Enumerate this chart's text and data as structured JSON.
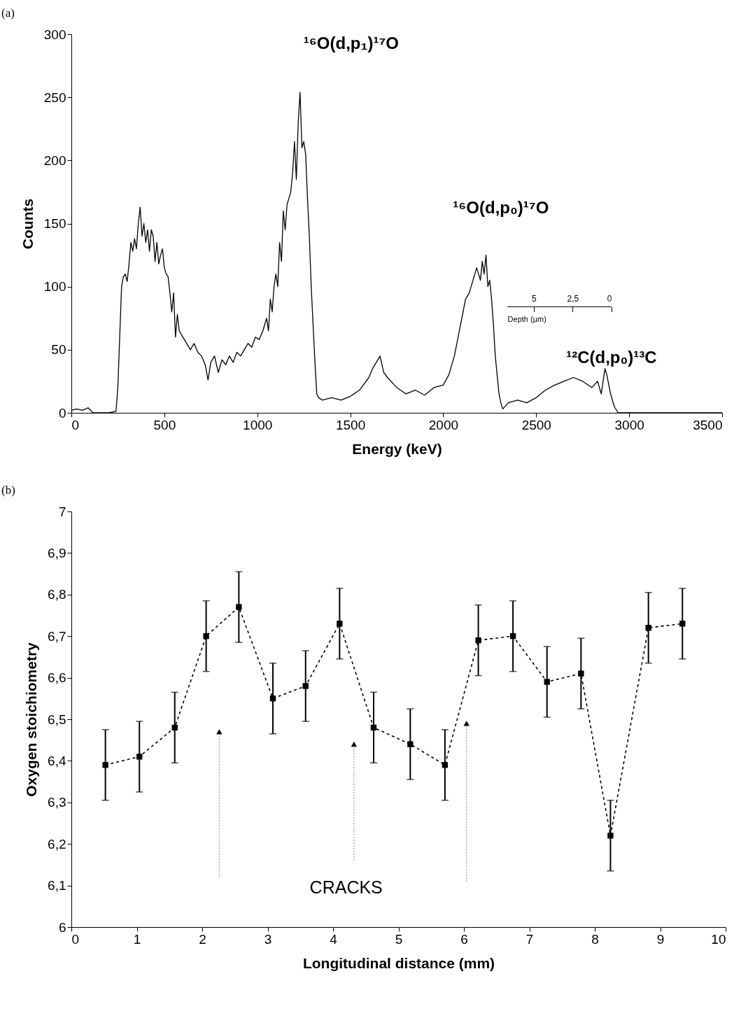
{
  "chart_data": [
    {
      "type": "line",
      "title": "(a)",
      "xlabel": "Energy (keV)",
      "ylabel": "Counts",
      "xlim": [
        0,
        3500
      ],
      "xticks": [
        0,
        500,
        1000,
        1500,
        2000,
        2500,
        3000,
        3500
      ],
      "ylim": [
        0,
        300
      ],
      "yticks": [
        0,
        50,
        100,
        150,
        200,
        250,
        300
      ],
      "x2lim": [
        6.7,
        0
      ],
      "x2ticks": [
        5,
        {
          "value": 2.5,
          "label": "2,5"
        },
        0
      ],
      "x2label": "Depth (µm)",
      "annotations": [
        "¹⁶O(d,p₁)¹⁷O",
        "¹⁶O(d,p₀)¹⁷O",
        "¹²C(d,p₀)¹³C"
      ],
      "series": [
        {
          "color": "#000000",
          "line_style": "solid",
          "x": [
            0,
            30,
            60,
            90,
            110,
            115,
            200,
            240,
            250,
            260,
            270,
            280,
            290,
            300,
            310,
            320,
            330,
            340,
            350,
            360,
            370,
            380,
            390,
            400,
            410,
            420,
            430,
            440,
            450,
            460,
            470,
            480,
            490,
            500,
            510,
            520,
            530,
            540,
            550,
            560,
            570,
            580,
            600,
            620,
            640,
            660,
            680,
            700,
            720,
            735,
            750,
            770,
            790,
            810,
            830,
            850,
            870,
            890,
            910,
            930,
            950,
            970,
            990,
            1010,
            1030,
            1050,
            1060,
            1070,
            1080,
            1090,
            1100,
            1110,
            1120,
            1130,
            1140,
            1150,
            1160,
            1170,
            1180,
            1190,
            1200,
            1210,
            1220,
            1230,
            1240,
            1250,
            1260,
            1270,
            1280,
            1290,
            1300,
            1310,
            1320,
            1330,
            1350,
            1400,
            1450,
            1500,
            1550,
            1600,
            1620,
            1640,
            1660,
            1680,
            1700,
            1750,
            1800,
            1850,
            1900,
            1950,
            2000,
            2030,
            2060,
            2080,
            2100,
            2120,
            2140,
            2160,
            2180,
            2200,
            2210,
            2220,
            2230,
            2240,
            2250,
            2260,
            2270,
            2280,
            2290,
            2300,
            2310,
            2320,
            2350,
            2400,
            2450,
            2500,
            2550,
            2600,
            2650,
            2700,
            2750,
            2800,
            2830,
            2850,
            2870,
            2880,
            2900,
            2920,
            2940,
            3000,
            3300,
            3500
          ],
          "values": [
            2,
            3,
            2,
            4,
            1,
            0,
            0,
            1,
            20,
            60,
            100,
            108,
            110,
            104,
            118,
            135,
            128,
            138,
            130,
            150,
            163,
            140,
            150,
            135,
            145,
            128,
            145,
            140,
            120,
            135,
            118,
            125,
            130,
            115,
            110,
            108,
            95,
            80,
            95,
            60,
            78,
            65,
            60,
            55,
            50,
            55,
            48,
            45,
            38,
            26,
            40,
            45,
            32,
            42,
            38,
            45,
            40,
            48,
            45,
            50,
            55,
            52,
            60,
            58,
            65,
            75,
            65,
            90,
            80,
            100,
            110,
            100,
            135,
            120,
            160,
            145,
            165,
            170,
            175,
            190,
            215,
            185,
            230,
            254,
            210,
            215,
            205,
            170,
            140,
            100,
            70,
            40,
            15,
            12,
            10,
            12,
            10,
            13,
            18,
            28,
            35,
            40,
            45,
            32,
            28,
            20,
            15,
            18,
            14,
            20,
            22,
            30,
            45,
            60,
            75,
            90,
            95,
            105,
            115,
            105,
            120,
            110,
            125,
            100,
            105,
            90,
            70,
            45,
            30,
            15,
            8,
            3,
            8,
            10,
            8,
            12,
            18,
            22,
            25,
            28,
            25,
            20,
            25,
            15,
            35,
            30,
            15,
            5,
            0,
            0,
            0,
            0
          ]
        }
      ]
    },
    {
      "type": "line",
      "title": "(b)",
      "xlabel": "Longitudinal distance (mm)",
      "ylabel": "Oxygen stoichiometry",
      "xlim": [
        0,
        10
      ],
      "xticks": [
        0,
        1,
        2,
        3,
        4,
        5,
        6,
        7,
        8,
        9,
        10
      ],
      "ylim": [
        6,
        7
      ],
      "yticks": [
        6,
        {
          "value": 6.1,
          "label": "6,1"
        },
        {
          "value": 6.2,
          "label": "6,2"
        },
        {
          "value": 6.3,
          "label": "6,3"
        },
        {
          "value": 6.4,
          "label": "6,4"
        },
        {
          "value": 6.5,
          "label": "6,5"
        },
        {
          "value": 6.6,
          "label": "6,6"
        },
        {
          "value": 6.7,
          "label": "6,7"
        },
        {
          "value": 6.8,
          "label": "6,8"
        },
        {
          "value": 6.9,
          "label": "6,9"
        },
        7
      ],
      "annotations": [
        "CRACKS"
      ],
      "series": [
        {
          "type": "line",
          "color": "#000000",
          "marker": "square",
          "line_style": "dashed",
          "x": [
            0.52,
            1.04,
            1.58,
            2.06,
            2.56,
            3.08,
            3.58,
            4.1,
            4.62,
            5.18,
            5.71,
            6.22,
            6.75,
            7.27,
            7.79,
            8.24,
            8.82,
            9.34
          ],
          "values": [
            6.39,
            6.41,
            6.48,
            6.7,
            6.77,
            6.55,
            6.58,
            6.73,
            6.48,
            6.44,
            6.39,
            6.69,
            6.7,
            6.59,
            6.61,
            6.22,
            6.72,
            6.73
          ],
          "errors": [
            0.085,
            0.085,
            0.085,
            0.085,
            0.085,
            0.085,
            0.085,
            0.085,
            0.085,
            0.085,
            0.085,
            0.085,
            0.085,
            0.085,
            0.085,
            0.085,
            0.085,
            0.085
          ]
        },
        {
          "type": "scatter",
          "color": "#000000",
          "marker": "triangle",
          "x": [
            2.26,
            4.32,
            6.04
          ],
          "values": [
            6.47,
            6.44,
            6.49
          ],
          "errors": [
            [
              6.12,
              6.47
            ],
            [
              6.16,
              6.44
            ],
            [
              6.11,
              6.49
            ]
          ]
        }
      ]
    }
  ]
}
